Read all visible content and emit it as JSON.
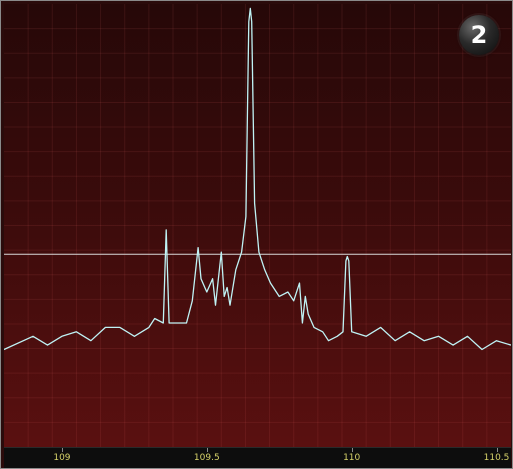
{
  "window": {
    "badge_number": "2"
  },
  "chart_data": {
    "type": "line",
    "title": "",
    "xlabel": "",
    "ylabel": "",
    "xlim": [
      108.8,
      110.55
    ],
    "ylim": [
      0,
      100
    ],
    "x_ticks": [
      {
        "value": 109.0,
        "label": "109"
      },
      {
        "value": 109.5,
        "label": "109.5"
      },
      {
        "value": 110.0,
        "label": "110"
      },
      {
        "value": 110.5,
        "label": "110.5"
      }
    ],
    "grid": true,
    "reference_line": {
      "y": 43.5
    },
    "series": [
      {
        "color": "#bff3f5",
        "x": [
          108.8,
          108.9,
          108.95,
          109.0,
          109.05,
          109.1,
          109.15,
          109.2,
          109.25,
          109.3,
          109.32,
          109.35,
          109.36,
          109.37,
          109.4,
          109.43,
          109.45,
          109.47,
          109.48,
          109.5,
          109.52,
          109.53,
          109.55,
          109.56,
          109.57,
          109.58,
          109.6,
          109.62,
          109.635,
          109.645,
          109.65,
          109.655,
          109.665,
          109.68,
          109.7,
          109.72,
          109.75,
          109.78,
          109.8,
          109.82,
          109.83,
          109.84,
          109.85,
          109.87,
          109.9,
          109.92,
          109.95,
          109.97,
          109.98,
          109.985,
          109.99,
          110.0,
          110.05,
          110.1,
          110.15,
          110.2,
          110.25,
          110.3,
          110.35,
          110.4,
          110.45,
          110.5,
          110.55
        ],
        "y": [
          22,
          25,
          23,
          25,
          26,
          24,
          27,
          27,
          25,
          27,
          29,
          28,
          49,
          28,
          28,
          28,
          33,
          45,
          38,
          35,
          38,
          32,
          44,
          34,
          36,
          32,
          40,
          44,
          52,
          96,
          99,
          96,
          55,
          44,
          40,
          37,
          34,
          35,
          33,
          37,
          28,
          34,
          30,
          27,
          26,
          24,
          25,
          26,
          42,
          43,
          42,
          26,
          25,
          27,
          24,
          26,
          24,
          25,
          23,
          25,
          22,
          24,
          23
        ]
      }
    ]
  }
}
